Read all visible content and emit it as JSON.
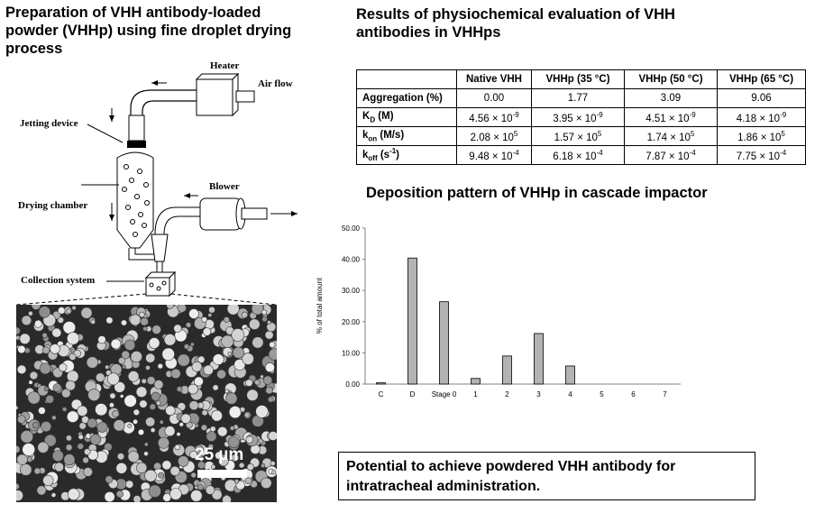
{
  "left_title": "Preparation of VHH antibody-loaded powder (VHHp) using fine droplet drying process",
  "diagram": {
    "heater": "Heater",
    "air_flow": "Air flow",
    "jetting_device": "Jetting device",
    "drying_chamber": "Drying chamber",
    "blower": "Blower",
    "collection_system": "Collection system",
    "scale_label": "25 µm"
  },
  "right_title": "Results of physiochemical evaluation of VHH antibodies in VHHps",
  "table": {
    "headers": [
      "",
      "Native VHH",
      "VHHp (35 °C)",
      "VHHp (50 °C)",
      "VHHp (65 °C)"
    ],
    "rows": [
      {
        "label": "Aggregation (%)",
        "cells": [
          {
            "m": "0.00",
            "e": ""
          },
          {
            "m": "1.77",
            "e": ""
          },
          {
            "m": "3.09",
            "e": ""
          },
          {
            "m": "9.06",
            "e": ""
          }
        ]
      },
      {
        "label_main": "K",
        "label_sub": "D",
        "label_tail": " (M)",
        "cells": [
          {
            "m": "4.56 × 10",
            "e": "-9"
          },
          {
            "m": "3.95 × 10",
            "e": "-9"
          },
          {
            "m": "4.51 × 10",
            "e": "-9"
          },
          {
            "m": "4.18 × 10",
            "e": "-9"
          }
        ]
      },
      {
        "label_main": "k",
        "label_sub": "on",
        "label_tail": " (M/s)",
        "cells": [
          {
            "m": "2.08 × 10",
            "e": "5"
          },
          {
            "m": "1.57 × 10",
            "e": "5"
          },
          {
            "m": "1.74 × 10",
            "e": "5"
          },
          {
            "m": "1.86 × 10",
            "e": "5"
          }
        ]
      },
      {
        "label_main": "k",
        "label_sub": "off",
        "label_tail": " (s",
        "label_sup": "-1",
        "label_end": ")",
        "cells": [
          {
            "m": "9.48 × 10",
            "e": "-4"
          },
          {
            "m": "6.18 × 10",
            "e": "-4"
          },
          {
            "m": "7.87 × 10",
            "e": "-4"
          },
          {
            "m": "7.75 × 10",
            "e": "-4"
          }
        ]
      }
    ]
  },
  "deposition_title": "Deposition pattern of VHHp in cascade impactor",
  "chart_data": {
    "type": "bar",
    "categories": [
      "C",
      "D",
      "Stage 0",
      "1",
      "2",
      "3",
      "4",
      "5",
      "6",
      "7"
    ],
    "values": [
      0.4,
      40.4,
      26.4,
      1.8,
      9.0,
      16.2,
      5.8,
      0,
      0,
      0
    ],
    "ylabel": "% of total amount",
    "ylim": [
      0,
      50
    ],
    "yticks": [
      "0.00",
      "10.00",
      "20.00",
      "30.00",
      "40.00",
      "50.00"
    ],
    "bar_color": "#b3b3b3"
  },
  "bottom_text": "Potential to achieve powdered VHH antibody for intratracheal administration."
}
